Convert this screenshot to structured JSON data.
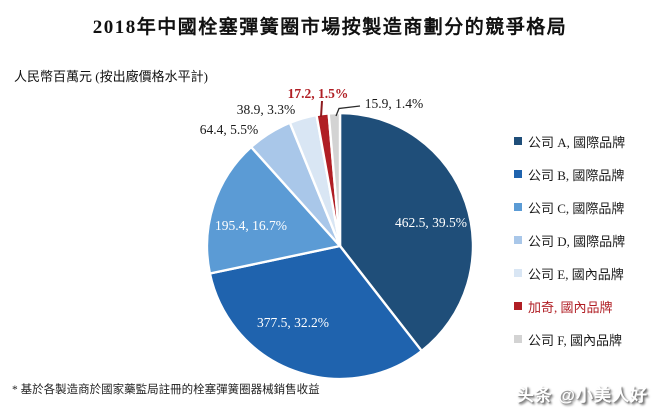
{
  "title": "2018年中國栓塞彈簧圈市場按製造商劃分的競爭格局",
  "unit_label": "人民幣百萬元 (按出廠價格水平計)",
  "footnote": "* 基於各製造商於國家藥監局註冊的栓塞彈簧圈器械銷售收益",
  "watermark": "头条 @小美人好",
  "colors": {
    "background": "#ffffff",
    "text": "#1a1a1a",
    "highlight_red": "#B01E24",
    "inside_label": "#ffffff"
  },
  "chart_data": {
    "type": "pie",
    "title": "2018年中國栓塞彈簧圈市場按製造商劃分的競爭格局",
    "unit": "人民幣百萬元 (按出廠價格水平計)",
    "legend_position": "right",
    "start_angle_deg": 0,
    "direction": "clockwise",
    "value_total": 1171.8,
    "slices": [
      {
        "label": "公司 A, 國際品牌",
        "value": 462.5,
        "pct": 39.5,
        "color": "#1F4E79",
        "data_label": "462.5, 39.5%"
      },
      {
        "label": "公司 B, 國際品牌",
        "value": 377.5,
        "pct": 32.2,
        "color": "#1F63AE",
        "data_label": "377.5, 32.2%"
      },
      {
        "label": "公司 C, 國際品牌",
        "value": 195.4,
        "pct": 16.7,
        "color": "#5B9BD5",
        "data_label": "195.4, 16.7%"
      },
      {
        "label": "公司 D, 國際品牌",
        "value": 64.4,
        "pct": 5.5,
        "color": "#A9C7E9",
        "data_label": "64.4, 5.5%"
      },
      {
        "label": "公司 E, 國內品牌",
        "value": 38.9,
        "pct": 3.3,
        "color": "#D9E6F4",
        "data_label": "38.9, 3.3%"
      },
      {
        "label": "加奇, 國內品牌",
        "value": 17.2,
        "pct": 1.5,
        "color": "#B01E24",
        "text_color": "#B01E24",
        "highlight": true,
        "data_label": "17.2, 1.5%"
      },
      {
        "label": "公司 F, 國內品牌",
        "value": 15.9,
        "pct": 1.4,
        "color": "#D3D3D3",
        "data_label": "15.9, 1.4%"
      }
    ]
  }
}
